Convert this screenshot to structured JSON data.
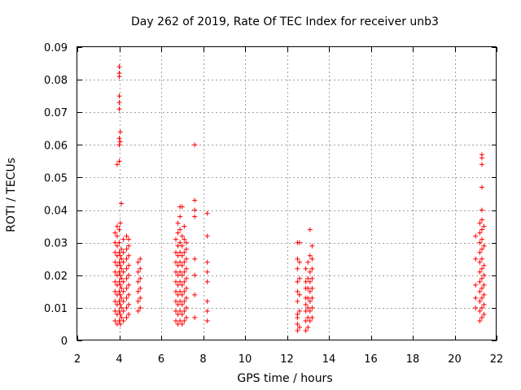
{
  "chart_data": {
    "type": "scatter",
    "title": "Day 262 of 2019, Rate Of TEC Index for receiver unb3",
    "xlabel": "GPS time / hours",
    "ylabel": "ROTI / TECUs",
    "xlim": [
      2,
      22
    ],
    "ylim": [
      0,
      0.09
    ],
    "xticks": [
      "2",
      "4",
      "6",
      "8",
      "10",
      "12",
      "14",
      "16",
      "18",
      "20",
      "22"
    ],
    "yticks": [
      "0",
      "0.01",
      "0.02",
      "0.03",
      "0.04",
      "0.05",
      "0.06",
      "0.07",
      "0.08",
      "0.09"
    ],
    "grid": true,
    "marker": "+",
    "color": "#ff0000",
    "series": [
      {
        "name": "unb3",
        "points": [
          [
            3.8,
            0.006
          ],
          [
            3.8,
            0.009
          ],
          [
            3.8,
            0.012
          ],
          [
            3.8,
            0.015
          ],
          [
            3.8,
            0.018
          ],
          [
            3.8,
            0.021
          ],
          [
            3.8,
            0.024
          ],
          [
            3.8,
            0.027
          ],
          [
            3.8,
            0.03
          ],
          [
            3.8,
            0.033
          ],
          [
            3.9,
            0.005
          ],
          [
            3.9,
            0.008
          ],
          [
            3.9,
            0.011
          ],
          [
            3.9,
            0.014
          ],
          [
            3.9,
            0.017
          ],
          [
            3.9,
            0.02
          ],
          [
            3.9,
            0.023
          ],
          [
            3.9,
            0.026
          ],
          [
            3.9,
            0.029
          ],
          [
            3.9,
            0.032
          ],
          [
            3.9,
            0.035
          ],
          [
            3.9,
            0.054
          ],
          [
            4.0,
            0.006
          ],
          [
            4.0,
            0.009
          ],
          [
            4.0,
            0.012
          ],
          [
            4.0,
            0.015
          ],
          [
            4.0,
            0.018
          ],
          [
            4.0,
            0.021
          ],
          [
            4.0,
            0.024
          ],
          [
            4.0,
            0.027
          ],
          [
            4.0,
            0.03
          ],
          [
            4.0,
            0.034
          ],
          [
            4.0,
            0.055
          ],
          [
            4.0,
            0.06
          ],
          [
            4.0,
            0.062
          ],
          [
            4.0,
            0.071
          ],
          [
            4.0,
            0.073
          ],
          [
            4.0,
            0.075
          ],
          [
            4.0,
            0.081
          ],
          [
            4.0,
            0.082
          ],
          [
            4.0,
            0.084
          ],
          [
            4.05,
            0.005
          ],
          [
            4.05,
            0.008
          ],
          [
            4.05,
            0.011
          ],
          [
            4.05,
            0.014
          ],
          [
            4.05,
            0.017
          ],
          [
            4.05,
            0.02
          ],
          [
            4.05,
            0.023
          ],
          [
            4.05,
            0.026
          ],
          [
            4.05,
            0.036
          ],
          [
            4.05,
            0.061
          ],
          [
            4.05,
            0.064
          ],
          [
            4.1,
            0.007
          ],
          [
            4.1,
            0.01
          ],
          [
            4.1,
            0.013
          ],
          [
            4.1,
            0.016
          ],
          [
            4.1,
            0.019
          ],
          [
            4.1,
            0.022
          ],
          [
            4.1,
            0.025
          ],
          [
            4.1,
            0.028
          ],
          [
            4.1,
            0.042
          ],
          [
            4.2,
            0.006
          ],
          [
            4.2,
            0.009
          ],
          [
            4.2,
            0.012
          ],
          [
            4.2,
            0.015
          ],
          [
            4.2,
            0.018
          ],
          [
            4.2,
            0.021
          ],
          [
            4.2,
            0.024
          ],
          [
            4.2,
            0.027
          ],
          [
            4.2,
            0.031
          ],
          [
            4.35,
            0.007
          ],
          [
            4.35,
            0.01
          ],
          [
            4.35,
            0.013
          ],
          [
            4.35,
            0.016
          ],
          [
            4.35,
            0.019
          ],
          [
            4.35,
            0.022
          ],
          [
            4.35,
            0.025
          ],
          [
            4.35,
            0.028
          ],
          [
            4.35,
            0.032
          ],
          [
            4.45,
            0.008
          ],
          [
            4.45,
            0.011
          ],
          [
            4.45,
            0.014
          ],
          [
            4.45,
            0.017
          ],
          [
            4.45,
            0.02
          ],
          [
            4.45,
            0.023
          ],
          [
            4.45,
            0.026
          ],
          [
            4.45,
            0.029
          ],
          [
            4.45,
            0.031
          ],
          [
            4.9,
            0.009
          ],
          [
            4.9,
            0.012
          ],
          [
            4.9,
            0.015
          ],
          [
            4.9,
            0.018
          ],
          [
            4.9,
            0.021
          ],
          [
            4.9,
            0.024
          ],
          [
            5.0,
            0.01
          ],
          [
            5.0,
            0.013
          ],
          [
            5.0,
            0.016
          ],
          [
            5.0,
            0.019
          ],
          [
            5.0,
            0.022
          ],
          [
            5.0,
            0.025
          ],
          [
            6.7,
            0.006
          ],
          [
            6.7,
            0.009
          ],
          [
            6.7,
            0.012
          ],
          [
            6.7,
            0.015
          ],
          [
            6.7,
            0.018
          ],
          [
            6.7,
            0.021
          ],
          [
            6.7,
            0.024
          ],
          [
            6.7,
            0.027
          ],
          [
            6.7,
            0.031
          ],
          [
            6.8,
            0.005
          ],
          [
            6.8,
            0.008
          ],
          [
            6.8,
            0.011
          ],
          [
            6.8,
            0.014
          ],
          [
            6.8,
            0.017
          ],
          [
            6.8,
            0.02
          ],
          [
            6.8,
            0.023
          ],
          [
            6.8,
            0.026
          ],
          [
            6.8,
            0.029
          ],
          [
            6.8,
            0.033
          ],
          [
            6.8,
            0.036
          ],
          [
            6.9,
            0.006
          ],
          [
            6.9,
            0.009
          ],
          [
            6.9,
            0.012
          ],
          [
            6.9,
            0.015
          ],
          [
            6.9,
            0.018
          ],
          [
            6.9,
            0.021
          ],
          [
            6.9,
            0.024
          ],
          [
            6.9,
            0.027
          ],
          [
            6.9,
            0.03
          ],
          [
            6.9,
            0.034
          ],
          [
            6.9,
            0.038
          ],
          [
            6.9,
            0.041
          ],
          [
            7.0,
            0.005
          ],
          [
            7.0,
            0.008
          ],
          [
            7.0,
            0.011
          ],
          [
            7.0,
            0.014
          ],
          [
            7.0,
            0.017
          ],
          [
            7.0,
            0.02
          ],
          [
            7.0,
            0.023
          ],
          [
            7.0,
            0.026
          ],
          [
            7.0,
            0.029
          ],
          [
            7.0,
            0.032
          ],
          [
            7.0,
            0.041
          ],
          [
            7.1,
            0.006
          ],
          [
            7.1,
            0.009
          ],
          [
            7.1,
            0.012
          ],
          [
            7.1,
            0.015
          ],
          [
            7.1,
            0.018
          ],
          [
            7.1,
            0.021
          ],
          [
            7.1,
            0.024
          ],
          [
            7.1,
            0.027
          ],
          [
            7.1,
            0.031
          ],
          [
            7.1,
            0.035
          ],
          [
            7.2,
            0.007
          ],
          [
            7.2,
            0.01
          ],
          [
            7.2,
            0.013
          ],
          [
            7.2,
            0.016
          ],
          [
            7.2,
            0.019
          ],
          [
            7.2,
            0.022
          ],
          [
            7.2,
            0.025
          ],
          [
            7.2,
            0.028
          ],
          [
            7.2,
            0.03
          ],
          [
            7.6,
            0.007
          ],
          [
            7.6,
            0.014
          ],
          [
            7.6,
            0.02
          ],
          [
            7.6,
            0.025
          ],
          [
            7.6,
            0.038
          ],
          [
            7.6,
            0.04
          ],
          [
            7.6,
            0.043
          ],
          [
            7.6,
            0.06
          ],
          [
            8.2,
            0.006
          ],
          [
            8.2,
            0.009
          ],
          [
            8.2,
            0.012
          ],
          [
            8.2,
            0.018
          ],
          [
            8.2,
            0.021
          ],
          [
            8.2,
            0.024
          ],
          [
            8.2,
            0.032
          ],
          [
            8.2,
            0.039
          ],
          [
            12.5,
            0.003
          ],
          [
            12.5,
            0.005
          ],
          [
            12.5,
            0.007
          ],
          [
            12.5,
            0.008
          ],
          [
            12.5,
            0.012
          ],
          [
            12.5,
            0.015
          ],
          [
            12.5,
            0.018
          ],
          [
            12.5,
            0.022
          ],
          [
            12.5,
            0.025
          ],
          [
            12.5,
            0.03
          ],
          [
            12.6,
            0.004
          ],
          [
            12.6,
            0.009
          ],
          [
            12.6,
            0.014
          ],
          [
            12.6,
            0.019
          ],
          [
            12.6,
            0.024
          ],
          [
            12.6,
            0.03
          ],
          [
            12.9,
            0.003
          ],
          [
            12.9,
            0.006
          ],
          [
            12.9,
            0.009
          ],
          [
            12.9,
            0.011
          ],
          [
            12.9,
            0.013
          ],
          [
            12.9,
            0.016
          ],
          [
            12.9,
            0.018
          ],
          [
            12.9,
            0.022
          ],
          [
            13.0,
            0.004
          ],
          [
            13.0,
            0.007
          ],
          [
            13.0,
            0.01
          ],
          [
            13.0,
            0.013
          ],
          [
            13.0,
            0.016
          ],
          [
            13.0,
            0.019
          ],
          [
            13.0,
            0.024
          ],
          [
            13.1,
            0.006
          ],
          [
            13.1,
            0.009
          ],
          [
            13.1,
            0.012
          ],
          [
            13.1,
            0.015
          ],
          [
            13.1,
            0.018
          ],
          [
            13.1,
            0.021
          ],
          [
            13.1,
            0.026
          ],
          [
            13.1,
            0.034
          ],
          [
            13.2,
            0.007
          ],
          [
            13.2,
            0.01
          ],
          [
            13.2,
            0.013
          ],
          [
            13.2,
            0.016
          ],
          [
            13.2,
            0.019
          ],
          [
            13.2,
            0.022
          ],
          [
            13.2,
            0.025
          ],
          [
            13.2,
            0.029
          ],
          [
            21.0,
            0.01
          ],
          [
            21.0,
            0.013
          ],
          [
            21.0,
            0.017
          ],
          [
            21.0,
            0.025
          ],
          [
            21.0,
            0.032
          ],
          [
            21.2,
            0.006
          ],
          [
            21.2,
            0.009
          ],
          [
            21.2,
            0.012
          ],
          [
            21.2,
            0.015
          ],
          [
            21.2,
            0.018
          ],
          [
            21.2,
            0.021
          ],
          [
            21.2,
            0.024
          ],
          [
            21.2,
            0.027
          ],
          [
            21.2,
            0.03
          ],
          [
            21.2,
            0.033
          ],
          [
            21.2,
            0.036
          ],
          [
            21.3,
            0.007
          ],
          [
            21.3,
            0.01
          ],
          [
            21.3,
            0.013
          ],
          [
            21.3,
            0.016
          ],
          [
            21.3,
            0.019
          ],
          [
            21.3,
            0.022
          ],
          [
            21.3,
            0.025
          ],
          [
            21.3,
            0.028
          ],
          [
            21.3,
            0.031
          ],
          [
            21.3,
            0.034
          ],
          [
            21.3,
            0.037
          ],
          [
            21.3,
            0.04
          ],
          [
            21.3,
            0.047
          ],
          [
            21.3,
            0.054
          ],
          [
            21.3,
            0.056
          ],
          [
            21.3,
            0.057
          ],
          [
            21.4,
            0.008
          ],
          [
            21.4,
            0.011
          ],
          [
            21.4,
            0.014
          ],
          [
            21.4,
            0.017
          ],
          [
            21.4,
            0.02
          ],
          [
            21.4,
            0.023
          ],
          [
            21.4,
            0.029
          ],
          [
            21.4,
            0.035
          ]
        ]
      }
    ]
  }
}
